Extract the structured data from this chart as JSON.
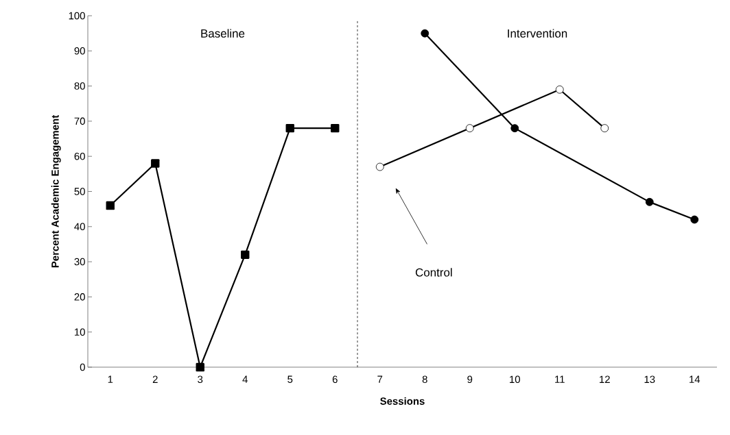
{
  "chart_data": {
    "type": "line",
    "xlabel": "Sessions",
    "ylabel": "Percent Academic Engagement",
    "xlim": [
      0.5,
      14.5
    ],
    "ylim": [
      0,
      100
    ],
    "xticks": [
      1,
      2,
      3,
      4,
      5,
      6,
      7,
      8,
      9,
      10,
      11,
      12,
      13,
      14
    ],
    "yticks": [
      0,
      10,
      20,
      30,
      40,
      50,
      60,
      70,
      80,
      90,
      100
    ],
    "grid": false,
    "ref_lines": [
      {
        "axis": "x",
        "value": 6.5,
        "line_style": "dashed",
        "color": "#000000"
      }
    ],
    "annotations": [
      "Baseline",
      "Intervention"
    ],
    "series": [
      {
        "x": [
          1,
          2,
          3,
          4,
          5,
          6
        ],
        "values": [
          46,
          58,
          0,
          32,
          68,
          68
        ],
        "marker": "square",
        "color": "#000000"
      },
      {
        "name": "Control",
        "x": [
          7,
          9,
          11,
          12
        ],
        "values": [
          57,
          68,
          79,
          68
        ],
        "marker": "circle",
        "color": "#ffffff"
      },
      {
        "x": [
          8,
          10,
          13,
          14
        ],
        "values": [
          95,
          68,
          47,
          42
        ],
        "marker": "circle",
        "color": "#000000"
      }
    ]
  }
}
